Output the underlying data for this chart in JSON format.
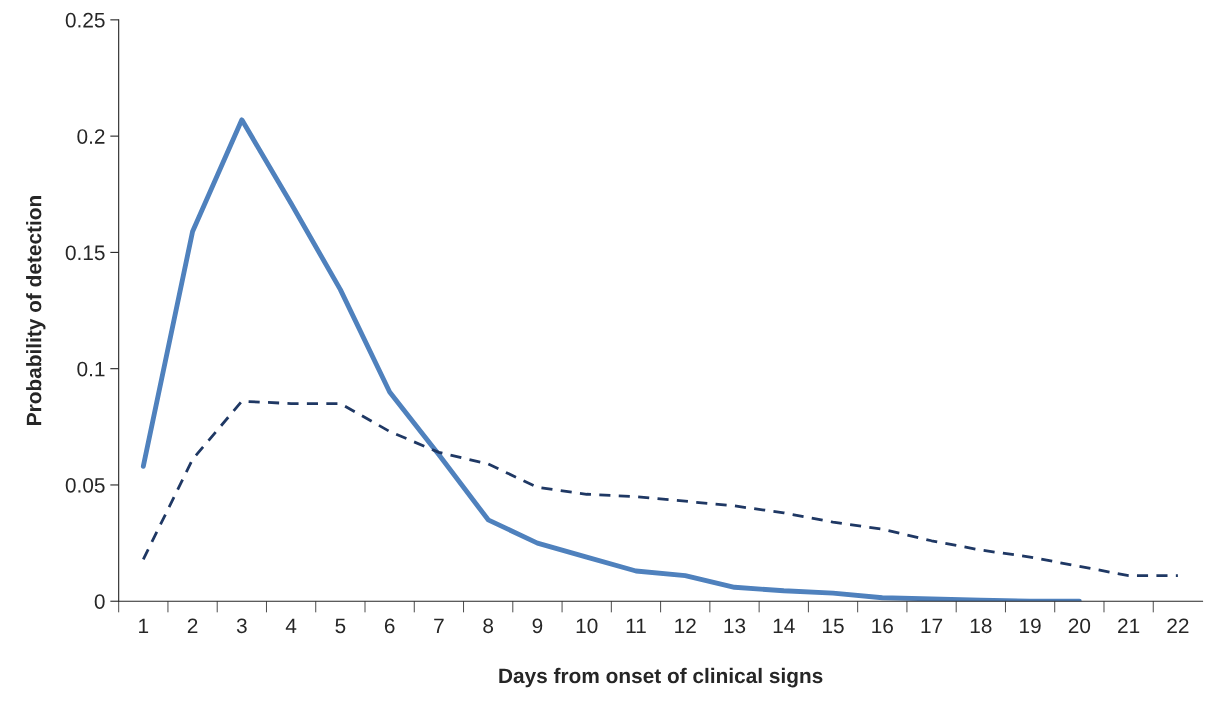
{
  "chart_data": {
    "type": "line",
    "xlabel": "Days from onset of clinical signs",
    "ylabel": "Probability of detection",
    "categories": [
      "1",
      "2",
      "3",
      "4",
      "5",
      "6",
      "7",
      "8",
      "9",
      "10",
      "11",
      "12",
      "13",
      "14",
      "15",
      "16",
      "17",
      "18",
      "19",
      "20",
      "21",
      "22"
    ],
    "series": [
      {
        "color": "#4f81bd",
        "line_style": "solid",
        "values": [
          0.058,
          0.159,
          0.207,
          0.171,
          0.134,
          0.09,
          0.063,
          0.035,
          0.025,
          0.019,
          0.013,
          0.011,
          0.006,
          0.0045,
          0.0035,
          0.0015,
          0.001,
          0.0005,
          0,
          0,
          null,
          null
        ]
      },
      {
        "color": "#1f3864",
        "line_style": "dashed",
        "values": [
          0.018,
          0.061,
          0.086,
          0.085,
          0.085,
          0.073,
          0.064,
          0.059,
          0.049,
          0.046,
          0.045,
          0.043,
          0.041,
          0.038,
          0.034,
          0.031,
          0.026,
          0.022,
          0.019,
          0.015,
          0.011,
          0.011
        ]
      }
    ],
    "ylim": [
      0,
      0.25
    ],
    "yticks": [
      {
        "value": 0,
        "label": "0"
      },
      0.05,
      0.1,
      0.15,
      0.2,
      0.25
    ],
    "grid": false,
    "marker": "none"
  }
}
